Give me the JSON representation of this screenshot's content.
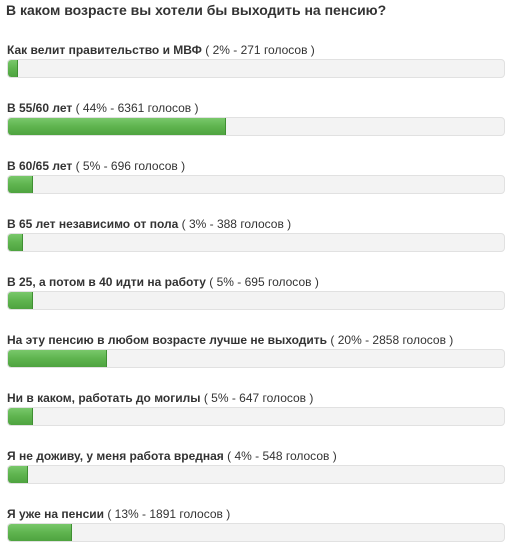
{
  "poll": {
    "title": "В каком возрасте вы хотели бы выходить на пенсию?",
    "options": [
      {
        "text": "Как велит правительство и МВФ",
        "stats": "( 2% - 271 голосов )",
        "percent": 2
      },
      {
        "text": "В 55/60 лет",
        "stats": "( 44% - 6361 голосов )",
        "percent": 44
      },
      {
        "text": "В 60/65 лет",
        "stats": "( 5% - 696 голосов )",
        "percent": 5
      },
      {
        "text": "В 65 лет независимо от пола",
        "stats": "( 3% - 388 голосов )",
        "percent": 3
      },
      {
        "text": "В 25, а потом в 40 идти на работу",
        "stats": "( 5% - 695 голосов )",
        "percent": 5
      },
      {
        "text": "На эту пенсию в любом возрасте лучше не выходить",
        "stats": "( 20% - 2858 голосов )",
        "percent": 20
      },
      {
        "text": "Ни в каком, работать до могилы",
        "stats": "( 5% - 647 голосов )",
        "percent": 5
      },
      {
        "text": "Я не доживу, у меня работа вредная",
        "stats": "( 4% - 548 голосов )",
        "percent": 4
      },
      {
        "text": "Я уже на пенсии",
        "stats": "( 13% - 1891 голосов )",
        "percent": 13
      }
    ]
  },
  "colors": {
    "bar_fill": "#5fb44f",
    "bar_track": "#f3f3f3",
    "text": "#333333"
  }
}
